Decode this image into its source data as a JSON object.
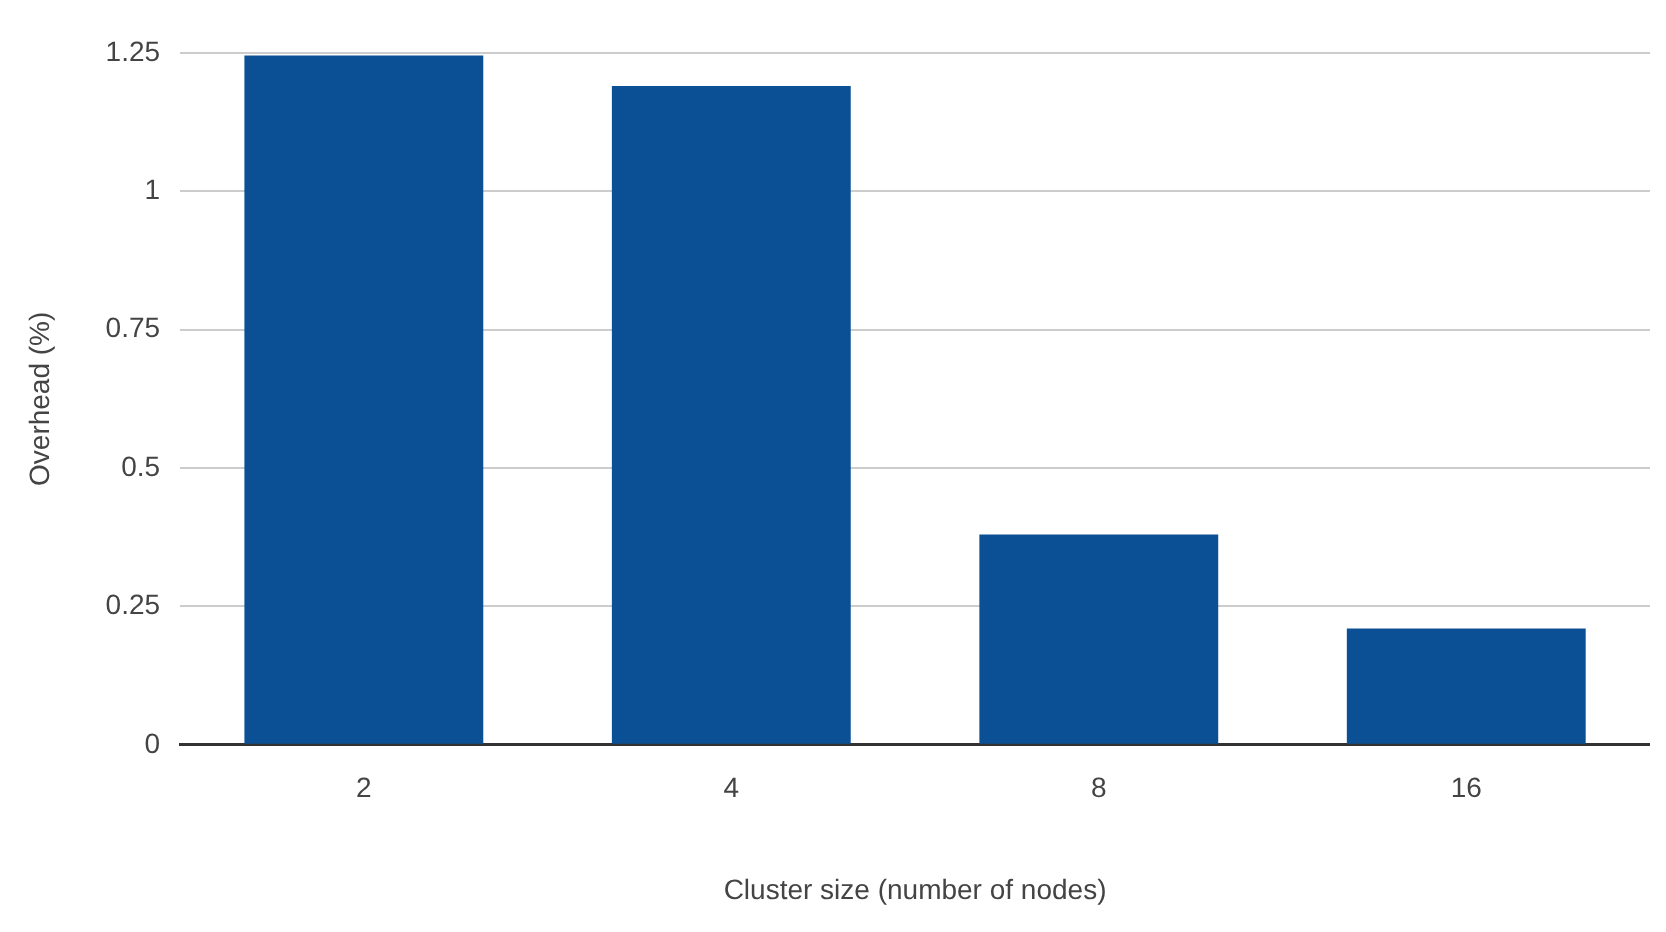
{
  "chart_data": {
    "type": "bar",
    "xlabel": "Cluster size (number of nodes)",
    "ylabel": "Overhead (%)",
    "categories": [
      "2",
      "4",
      "8",
      "16"
    ],
    "values": [
      1.245,
      1.19,
      0.38,
      0.21
    ],
    "color": "#0b5095",
    "ylim": [
      0,
      1.25
    ],
    "yticks": [
      0,
      0.25,
      0.5,
      0.75,
      1,
      1.25
    ],
    "grid": "y",
    "legend": false
  }
}
